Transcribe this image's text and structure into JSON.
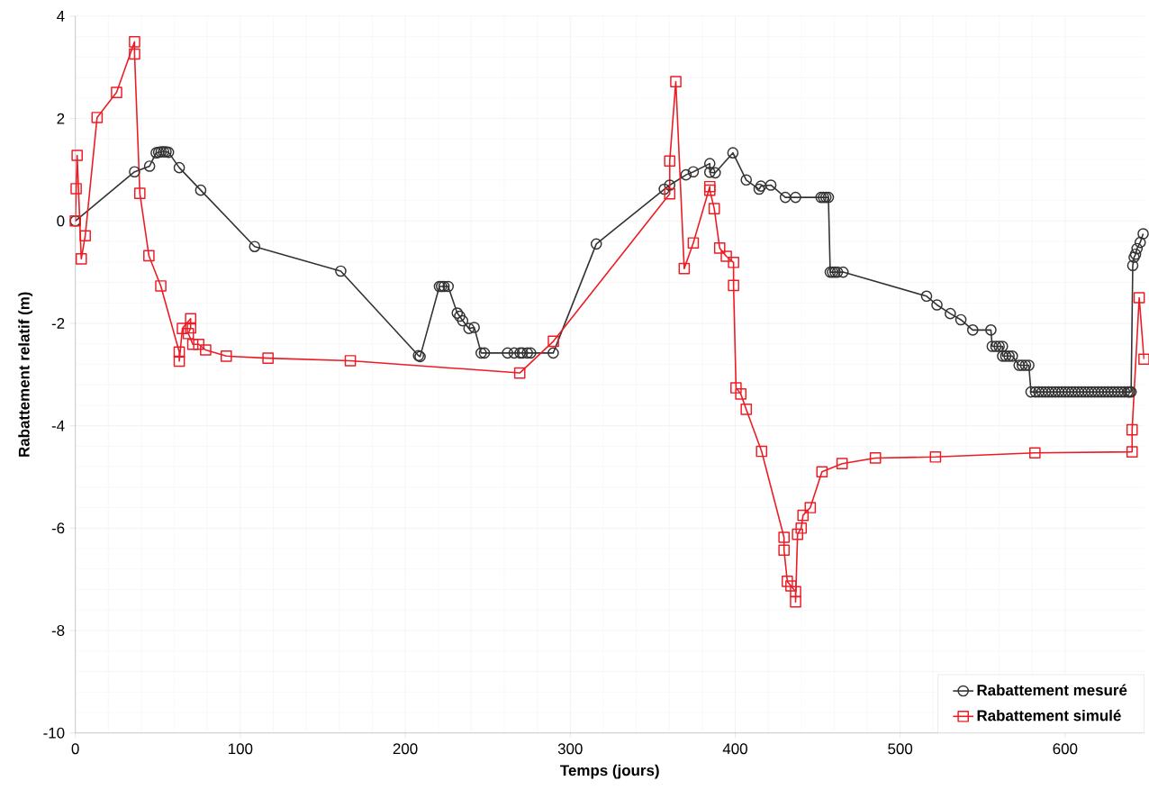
{
  "chart_data": {
    "type": "line",
    "xlabel": "Temps (jours)",
    "ylabel": "Rabattement relatif (m)",
    "xlim": [
      0,
      648
    ],
    "ylim": [
      -10,
      4
    ],
    "xticks": [
      0,
      100,
      200,
      300,
      400,
      500,
      600
    ],
    "yticks": [
      -10,
      -8,
      -6,
      -4,
      -2,
      0,
      2,
      4
    ],
    "grid": true,
    "legend": "bottom right",
    "series": [
      {
        "name": "Rabattement mesuré",
        "color": "#333333",
        "marker": "circle",
        "line_style": "solid",
        "x": [
          0,
          35.9,
          45,
          49,
          50.5,
          52,
          53.5,
          55,
          56.5,
          63,
          76,
          108.7,
          160.9,
          208,
          209,
          220.7,
          222,
          223.5,
          226,
          231.5,
          233,
          234.8,
          238.6,
          241.8,
          246,
          248,
          262,
          266,
          269.6,
          271,
          274,
          276,
          289.7,
          315.8,
          357,
          360.3,
          370.2,
          374.6,
          384.6,
          384.6,
          387.9,
          398.6,
          406.7,
          414.5,
          415.6,
          421.6,
          430.4,
          436.6,
          452,
          453.5,
          455,
          456.5,
          457.6,
          459,
          460.5,
          462,
          465.4,
          516,
          522.3,
          530.4,
          536.8,
          544,
          555,
          555.8,
          558,
          560,
          562,
          562.1,
          564,
          566,
          568,
          572.1,
          574,
          576,
          578,
          579.3,
          582,
          584,
          586,
          588,
          590,
          592,
          594,
          596,
          598,
          600,
          602,
          604,
          606,
          608,
          610,
          612,
          614,
          616,
          618,
          620,
          622,
          624,
          626,
          628,
          630,
          632,
          634,
          636,
          638,
          639,
          640,
          641,
          641.8,
          642.7,
          643.6,
          645.5,
          647.3
        ],
        "values": [
          0,
          0.96,
          1.07,
          1.33,
          1.34,
          1.35,
          1.35,
          1.35,
          1.34,
          1.04,
          0.6,
          -0.5,
          -0.98,
          -2.63,
          -2.65,
          -1.28,
          -1.28,
          -1.28,
          -1.28,
          -1.8,
          -1.86,
          -1.95,
          -2.1,
          -2.08,
          -2.58,
          -2.58,
          -2.58,
          -2.58,
          -2.58,
          -2.58,
          -2.58,
          -2.58,
          -2.58,
          -0.45,
          0.62,
          0.7,
          0.9,
          0.96,
          1.12,
          0.95,
          0.94,
          1.33,
          0.8,
          0.62,
          0.68,
          0.7,
          0.46,
          0.46,
          0.46,
          0.46,
          0.46,
          0.46,
          -1.0,
          -1.0,
          -1.0,
          -1.0,
          -1.0,
          -1.47,
          -1.64,
          -1.81,
          -1.93,
          -2.13,
          -2.13,
          -2.45,
          -2.45,
          -2.45,
          -2.45,
          -2.64,
          -2.64,
          -2.64,
          -2.64,
          -2.82,
          -2.82,
          -2.82,
          -2.82,
          -3.34,
          -3.34,
          -3.34,
          -3.34,
          -3.34,
          -3.34,
          -3.34,
          -3.34,
          -3.34,
          -3.34,
          -3.34,
          -3.34,
          -3.34,
          -3.34,
          -3.34,
          -3.34,
          -3.34,
          -3.34,
          -3.34,
          -3.34,
          -3.34,
          -3.34,
          -3.34,
          -3.34,
          -3.34,
          -3.34,
          -3.34,
          -3.34,
          -3.34,
          -3.34,
          -3.34,
          -3.34,
          -0.87,
          -0.71,
          -0.65,
          -0.54,
          -0.42,
          -0.25
        ]
      },
      {
        "name": "Rabattement simulé",
        "color": "#ed1c24",
        "marker": "square",
        "line_style": "solid",
        "x": [
          0,
          0.5,
          1.1,
          3.6,
          6,
          13.2,
          25,
          35.9,
          35.9,
          39.1,
          44.6,
          51.8,
          63,
          63,
          64.9,
          69.9,
          69.9,
          68.5,
          71.2,
          74.8,
          79,
          91.5,
          116.8,
          166.7,
          269.4,
          289.8,
          360.3,
          360.3,
          364,
          369.1,
          374.6,
          384.6,
          384.6,
          387.3,
          390.6,
          394.6,
          399,
          399,
          400.5,
          403.4,
          406.7,
          416,
          429.6,
          429.6,
          431.6,
          433.8,
          436.6,
          436.6,
          437.8,
          440,
          441.1,
          445.5,
          452.6,
          464.8,
          485,
          521.4,
          581.7,
          640.6,
          640.6,
          644.9,
          647.8
        ],
        "values": [
          0,
          0.63,
          1.28,
          -0.74,
          -0.29,
          2.02,
          2.51,
          3.5,
          3.26,
          0.54,
          -0.68,
          -1.27,
          -2.56,
          -2.74,
          -2.1,
          -1.91,
          -2.09,
          -2.2,
          -2.41,
          -2.41,
          -2.52,
          -2.64,
          -2.68,
          -2.73,
          -2.97,
          -2.35,
          0.53,
          1.17,
          2.72,
          -0.93,
          -0.43,
          0.67,
          0.6,
          0.24,
          -0.53,
          -0.69,
          -0.81,
          -1.26,
          -3.26,
          -3.38,
          -3.68,
          -4.5,
          -6.18,
          -6.43,
          -7.04,
          -7.13,
          -7.24,
          -7.44,
          -6.12,
          -6.0,
          -5.75,
          -5.6,
          -4.9,
          -4.74,
          -4.63,
          -4.61,
          -4.53,
          -4.51,
          -4.08,
          -1.5,
          -2.7
        ]
      }
    ]
  }
}
